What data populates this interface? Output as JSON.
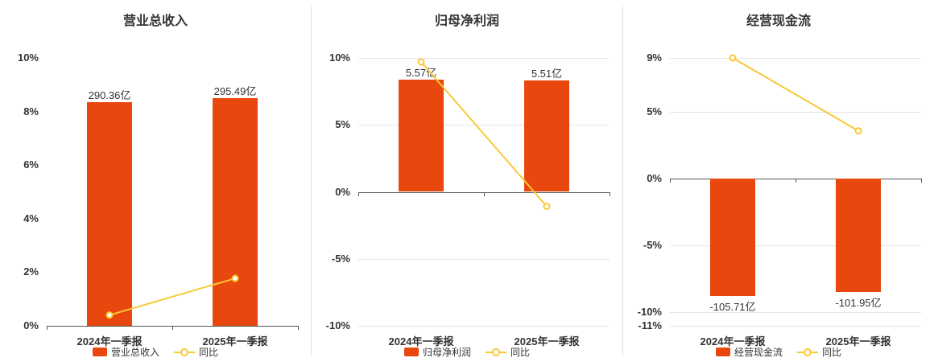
{
  "colors": {
    "bar": "#e8470e",
    "line": "#f9c835",
    "title": "#333333",
    "axis_label": "#333333",
    "grid": "#e4e4e4",
    "zero_line": "#555555",
    "divider": "#e0e0e0"
  },
  "chart_data": [
    {
      "type": "bar+line",
      "title": "营业总收入",
      "categories": [
        "2024年一季报",
        "2025年一季报"
      ],
      "ylim": [
        0,
        10
      ],
      "y_ticks": [
        10,
        8,
        6,
        4,
        2,
        0
      ],
      "y_tick_suffix": "%",
      "grid": false,
      "legend_position": "bottom",
      "bar_series": {
        "name": "营业总收入",
        "values": [
          290.36,
          295.49
        ],
        "unit": "亿",
        "value_labels": [
          "290.36亿",
          "295.49亿"
        ],
        "display_heights": [
          8.35,
          8.5
        ]
      },
      "line_series": {
        "name": "同比",
        "values_pct": [
          0.4,
          1.77
        ]
      }
    },
    {
      "type": "bar+line",
      "title": "归母净利润",
      "categories": [
        "2024年一季报",
        "2025年一季报"
      ],
      "ylim": [
        -10,
        10
      ],
      "y_ticks": [
        10,
        5,
        0,
        -5,
        -10
      ],
      "y_tick_suffix": "%",
      "grid": true,
      "legend_position": "bottom",
      "bar_series": {
        "name": "归母净利润",
        "values": [
          5.57,
          5.51
        ],
        "unit": "亿",
        "value_labels": [
          "5.57亿",
          "5.51亿"
        ],
        "display_heights": [
          8.4,
          8.31
        ]
      },
      "line_series": {
        "name": "同比",
        "values_pct": [
          9.7,
          -1.08
        ]
      }
    },
    {
      "type": "bar+line",
      "title": "经营现金流",
      "categories": [
        "2024年一季报",
        "2025年一季报"
      ],
      "ylim": [
        -11,
        9
      ],
      "y_ticks": [
        9,
        5,
        0,
        -5,
        -10,
        -11
      ],
      "y_tick_suffix": "%",
      "grid": true,
      "legend_position": "bottom",
      "bar_series": {
        "name": "经营现金流",
        "values": [
          -105.71,
          -101.95
        ],
        "unit": "亿",
        "value_labels": [
          "-105.71亿",
          "-101.95亿"
        ],
        "display_heights": [
          -8.8,
          -8.49
        ]
      },
      "line_series": {
        "name": "同比",
        "values_pct": [
          9.0,
          3.56
        ]
      }
    }
  ]
}
